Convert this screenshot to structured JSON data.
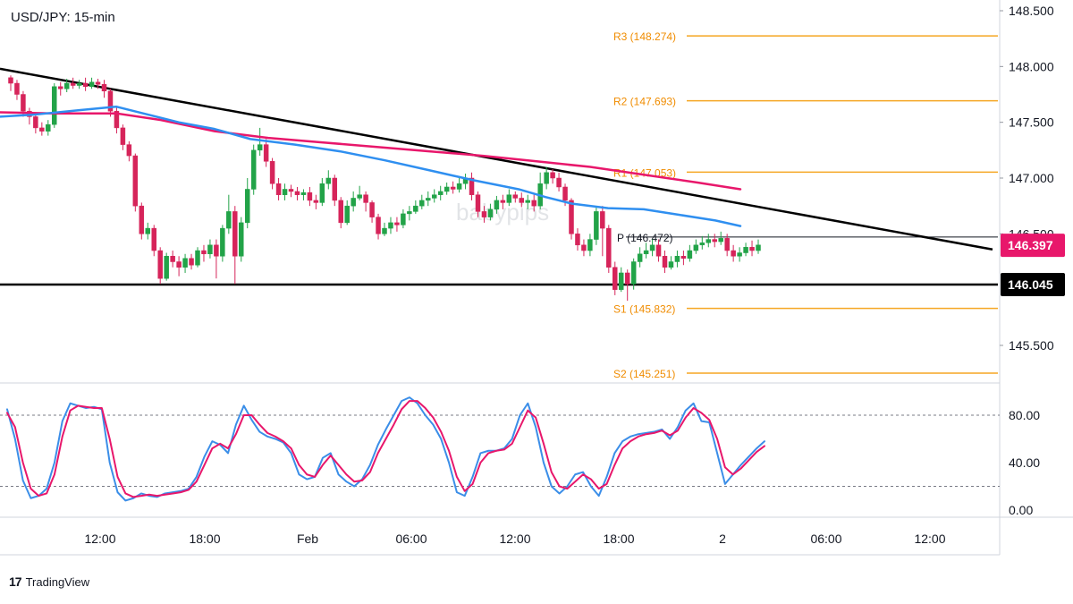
{
  "title": "USD/JPY: 15-min",
  "watermark": "babypips",
  "branding": "TradingView",
  "colors": {
    "up_candle": "#22a348",
    "down_candle": "#d6245a",
    "ema_fast": "#2f8ff0",
    "ema_slow": "#e8176b",
    "pivot_lines": "#f5a623",
    "pivot_text": "#f08c00",
    "trendline": "#000000",
    "stoch_k": "#3b8ee8",
    "stoch_d": "#e8176b"
  },
  "chart_data": [
    {
      "type": "candlestick",
      "timeframe": "15-min",
      "x_tick_labels": [
        "12:00",
        "18:00",
        "Feb",
        "06:00",
        "12:00",
        "18:00",
        "2",
        "06:00",
        "12:00"
      ],
      "ylim": [
        145.1,
        148.6
      ],
      "y_tick_labels": [
        "148.500",
        "148.000",
        "147.500",
        "147.000",
        "146.500",
        "145.500"
      ],
      "price_labels": [
        {
          "name": "last",
          "value": 146.397,
          "label": "146.397",
          "color": "#e8176b"
        },
        {
          "name": "support",
          "value": 146.045,
          "label": "146.045",
          "color": "#000000"
        }
      ],
      "pivot_levels": [
        {
          "name": "R3",
          "value": 148.274,
          "label": "R3 (148.274)"
        },
        {
          "name": "R2",
          "value": 147.693,
          "label": "R2 (147.693)"
        },
        {
          "name": "R1",
          "value": 147.053,
          "label": "R1 (147.053)"
        },
        {
          "name": "P",
          "value": 146.472,
          "label": "P (146.472)"
        },
        {
          "name": "S1",
          "value": 145.832,
          "label": "S1 (145.832)"
        },
        {
          "name": "S2",
          "value": 145.251,
          "label": "S2 (145.251)"
        }
      ],
      "horizontal_support": 146.045,
      "descending_trendline": {
        "start": [
          0,
          147.98
        ],
        "end": [
          1110,
          146.36
        ]
      },
      "ema_fast_points": [
        [
          0,
          147.55
        ],
        [
          40,
          147.57
        ],
        [
          90,
          147.61
        ],
        [
          130,
          147.64
        ],
        [
          160,
          147.58
        ],
        [
          200,
          147.5
        ],
        [
          240,
          147.44
        ],
        [
          280,
          147.35
        ],
        [
          330,
          147.3
        ],
        [
          380,
          147.24
        ],
        [
          430,
          147.16
        ],
        [
          480,
          147.07
        ],
        [
          530,
          146.98
        ],
        [
          580,
          146.9
        ],
        [
          610,
          146.83
        ],
        [
          640,
          146.77
        ],
        [
          680,
          146.73
        ],
        [
          720,
          146.72
        ],
        [
          760,
          146.67
        ],
        [
          800,
          146.62
        ],
        [
          828,
          146.57
        ]
      ],
      "ema_slow_points": [
        [
          0,
          147.59
        ],
        [
          60,
          147.58
        ],
        [
          130,
          147.58
        ],
        [
          180,
          147.52
        ],
        [
          240,
          147.42
        ],
        [
          300,
          147.36
        ],
        [
          360,
          147.32
        ],
        [
          420,
          147.28
        ],
        [
          480,
          147.24
        ],
        [
          540,
          147.2
        ],
        [
          600,
          147.15
        ],
        [
          660,
          147.1
        ],
        [
          720,
          147.03
        ],
        [
          780,
          146.96
        ],
        [
          828,
          146.9
        ]
      ],
      "candles": [
        [
          147.9,
          147.85,
          147.92,
          147.78
        ],
        [
          147.85,
          147.75,
          147.88,
          147.7
        ],
        [
          147.75,
          147.6,
          147.78,
          147.55
        ],
        [
          147.6,
          147.55,
          147.63,
          147.48
        ],
        [
          147.55,
          147.45,
          147.58,
          147.4
        ],
        [
          147.45,
          147.42,
          147.5,
          147.38
        ],
        [
          147.42,
          147.48,
          147.52,
          147.38
        ],
        [
          147.48,
          147.82,
          147.85,
          147.45
        ],
        [
          147.82,
          147.8,
          147.86,
          147.74
        ],
        [
          147.8,
          147.85,
          147.89,
          147.77
        ],
        [
          147.85,
          147.83,
          147.9,
          147.8
        ],
        [
          147.83,
          147.85,
          147.88,
          147.8
        ],
        [
          147.85,
          147.82,
          147.9,
          147.78
        ],
        [
          147.82,
          147.86,
          147.9,
          147.8
        ],
        [
          147.86,
          147.84,
          147.89,
          147.8
        ],
        [
          147.84,
          147.78,
          147.88,
          147.72
        ],
        [
          147.78,
          147.6,
          147.8,
          147.55
        ],
        [
          147.6,
          147.45,
          147.63,
          147.4
        ],
        [
          147.45,
          147.3,
          147.48,
          147.25
        ],
        [
          147.3,
          147.2,
          147.33,
          147.15
        ],
        [
          147.2,
          146.75,
          147.22,
          146.7
        ],
        [
          146.75,
          146.5,
          146.78,
          146.45
        ],
        [
          146.5,
          146.55,
          146.6,
          146.45
        ],
        [
          146.55,
          146.35,
          146.58,
          146.3
        ],
        [
          146.35,
          146.1,
          146.38,
          146.05
        ],
        [
          146.1,
          146.3,
          146.33,
          146.08
        ],
        [
          146.3,
          146.25,
          146.35,
          146.2
        ],
        [
          146.25,
          146.2,
          146.3,
          146.12
        ],
        [
          146.2,
          146.28,
          146.32,
          146.15
        ],
        [
          146.28,
          146.22,
          146.32,
          146.18
        ],
        [
          146.22,
          146.35,
          146.38,
          146.2
        ],
        [
          146.35,
          146.32,
          146.4,
          146.25
        ],
        [
          146.32,
          146.4,
          146.45,
          146.28
        ],
        [
          146.4,
          146.3,
          146.45,
          146.1
        ],
        [
          146.3,
          146.55,
          146.58,
          146.25
        ],
        [
          146.55,
          146.7,
          146.85,
          146.5
        ],
        [
          146.7,
          146.3,
          146.75,
          146.05
        ],
        [
          146.3,
          146.6,
          146.65,
          146.25
        ],
        [
          146.6,
          146.9,
          147.0,
          146.55
        ],
        [
          146.9,
          147.25,
          147.3,
          146.85
        ],
        [
          147.25,
          147.3,
          147.45,
          147.2
        ],
        [
          147.3,
          147.15,
          147.35,
          147.1
        ],
        [
          147.15,
          146.95,
          147.18,
          146.9
        ],
        [
          146.95,
          146.85,
          147.0,
          146.8
        ],
        [
          146.85,
          146.9,
          146.95,
          146.8
        ],
        [
          146.9,
          146.88,
          146.94,
          146.83
        ],
        [
          146.88,
          146.85,
          146.92,
          146.8
        ],
        [
          146.85,
          146.87,
          146.9,
          146.8
        ],
        [
          146.87,
          146.8,
          146.92,
          146.75
        ],
        [
          146.8,
          146.78,
          146.85,
          146.72
        ],
        [
          146.78,
          146.95,
          147.0,
          146.75
        ],
        [
          146.95,
          147.0,
          147.07,
          146.9
        ],
        [
          147.0,
          146.8,
          147.03,
          146.75
        ],
        [
          146.8,
          146.6,
          146.83,
          146.55
        ],
        [
          146.6,
          146.75,
          146.8,
          146.58
        ],
        [
          146.75,
          146.82,
          146.88,
          146.7
        ],
        [
          146.82,
          146.85,
          146.93,
          146.8
        ],
        [
          146.85,
          146.78,
          146.88,
          146.7
        ],
        [
          146.78,
          146.65,
          146.8,
          146.6
        ],
        [
          146.65,
          146.5,
          146.68,
          146.45
        ],
        [
          146.5,
          146.55,
          146.6,
          146.48
        ],
        [
          146.55,
          146.6,
          146.65,
          146.5
        ],
        [
          146.6,
          146.58,
          146.65,
          146.52
        ],
        [
          146.58,
          146.68,
          146.72,
          146.55
        ],
        [
          146.68,
          146.7,
          146.75,
          146.62
        ],
        [
          146.7,
          146.75,
          146.8,
          146.68
        ],
        [
          146.75,
          146.8,
          146.85,
          146.72
        ],
        [
          146.8,
          146.82,
          146.88,
          146.75
        ],
        [
          146.82,
          146.85,
          146.9,
          146.78
        ],
        [
          146.85,
          146.88,
          146.93,
          146.8
        ],
        [
          146.88,
          146.92,
          146.96,
          146.85
        ],
        [
          146.92,
          146.9,
          146.97,
          146.86
        ],
        [
          146.9,
          146.95,
          147.0,
          146.87
        ],
        [
          146.95,
          147.0,
          147.04,
          146.9
        ],
        [
          147.0,
          146.85,
          147.05,
          146.8
        ],
        [
          146.85,
          146.7,
          146.88,
          146.65
        ],
        [
          146.7,
          146.65,
          146.75,
          146.6
        ],
        [
          146.65,
          146.72,
          146.77,
          146.62
        ],
        [
          146.72,
          146.8,
          146.84,
          146.68
        ],
        [
          146.8,
          146.78,
          146.85,
          146.72
        ],
        [
          146.78,
          146.85,
          146.9,
          146.75
        ],
        [
          146.85,
          146.82,
          146.88,
          146.78
        ],
        [
          146.82,
          146.78,
          146.87,
          146.74
        ],
        [
          146.78,
          146.8,
          146.85,
          146.72
        ],
        [
          146.8,
          146.75,
          146.85,
          146.7
        ],
        [
          146.75,
          146.95,
          147.05,
          146.72
        ],
        [
          146.95,
          147.05,
          147.1,
          146.9
        ],
        [
          147.05,
          147.0,
          147.08,
          146.95
        ],
        [
          147.0,
          146.92,
          147.05,
          146.88
        ],
        [
          146.92,
          146.8,
          146.95,
          146.75
        ],
        [
          146.8,
          146.5,
          146.82,
          146.45
        ],
        [
          146.5,
          146.4,
          146.55,
          146.35
        ],
        [
          146.4,
          146.35,
          146.45,
          146.3
        ],
        [
          146.35,
          146.45,
          146.5,
          146.3
        ],
        [
          146.45,
          146.7,
          146.75,
          146.4
        ],
        [
          146.7,
          146.55,
          146.75,
          146.3
        ],
        [
          146.55,
          146.2,
          146.58,
          146.15
        ],
        [
          146.2,
          146.0,
          146.25,
          145.95
        ],
        [
          146.0,
          146.15,
          146.2,
          145.98
        ],
        [
          146.15,
          146.05,
          146.18,
          145.9
        ],
        [
          146.05,
          146.25,
          146.28,
          146.0
        ],
        [
          146.25,
          146.32,
          146.38,
          146.2
        ],
        [
          146.32,
          146.35,
          146.42,
          146.28
        ],
        [
          146.35,
          146.4,
          146.45,
          146.3
        ],
        [
          146.4,
          146.3,
          146.45,
          146.25
        ],
        [
          146.3,
          146.2,
          146.35,
          146.15
        ],
        [
          146.2,
          146.25,
          146.3,
          146.18
        ],
        [
          146.25,
          146.3,
          146.35,
          146.2
        ],
        [
          146.3,
          146.28,
          146.35,
          146.22
        ],
        [
          146.28,
          146.35,
          146.4,
          146.25
        ],
        [
          146.35,
          146.4,
          146.45,
          146.32
        ],
        [
          146.4,
          146.42,
          146.48,
          146.36
        ],
        [
          146.42,
          146.45,
          146.5,
          146.38
        ],
        [
          146.45,
          146.43,
          146.5,
          146.38
        ],
        [
          146.43,
          146.46,
          146.52,
          146.4
        ],
        [
          146.46,
          146.35,
          146.5,
          146.3
        ],
        [
          146.35,
          146.3,
          146.4,
          146.25
        ],
        [
          146.3,
          146.33,
          146.38,
          146.25
        ],
        [
          146.33,
          146.38,
          146.42,
          146.3
        ],
        [
          146.38,
          146.35,
          146.44,
          146.3
        ],
        [
          146.35,
          146.4,
          146.45,
          146.32
        ]
      ]
    },
    {
      "type": "line",
      "indicator": "stochastic",
      "ylim": [
        0,
        110
      ],
      "y_tick_labels": [
        "80.00",
        "40.00",
        "0.00"
      ],
      "levels": [
        80,
        20
      ],
      "series": [
        {
          "values": [
            85,
            60,
            25,
            10,
            12,
            18,
            40,
            75,
            90,
            88,
            86,
            87,
            85,
            40,
            15,
            8,
            10,
            14,
            12,
            11,
            14,
            15,
            16,
            18,
            28,
            45,
            58,
            55,
            48,
            72,
            88,
            76,
            66,
            62,
            60,
            57,
            48,
            30,
            26,
            28,
            44,
            48,
            30,
            24,
            20,
            26,
            38,
            55,
            68,
            80,
            92,
            95,
            90,
            80,
            72,
            60,
            40,
            15,
            12,
            28,
            48,
            50,
            50,
            52,
            60,
            80,
            90,
            70,
            40,
            20,
            14,
            20,
            30,
            32,
            20,
            12,
            28,
            48,
            58,
            62,
            64,
            65,
            66,
            68,
            60,
            70,
            84,
            90,
            75,
            74,
            48,
            22,
            30,
            38,
            45,
            52,
            58
          ]
        },
        {
          "values": [
            82,
            70,
            40,
            18,
            12,
            14,
            30,
            62,
            84,
            88,
            87,
            86,
            86,
            60,
            28,
            14,
            11,
            12,
            13,
            12,
            13,
            14,
            15,
            17,
            24,
            38,
            52,
            56,
            52,
            64,
            80,
            80,
            72,
            65,
            62,
            58,
            52,
            38,
            30,
            28,
            38,
            46,
            38,
            30,
            24,
            25,
            32,
            48,
            60,
            72,
            85,
            92,
            92,
            86,
            78,
            66,
            50,
            28,
            16,
            22,
            40,
            48,
            50,
            51,
            56,
            70,
            84,
            78,
            56,
            32,
            20,
            18,
            24,
            30,
            26,
            18,
            22,
            38,
            52,
            58,
            62,
            64,
            65,
            67,
            63,
            67,
            78,
            86,
            82,
            76,
            60,
            36,
            30,
            35,
            42,
            49,
            54
          ]
        }
      ]
    }
  ]
}
